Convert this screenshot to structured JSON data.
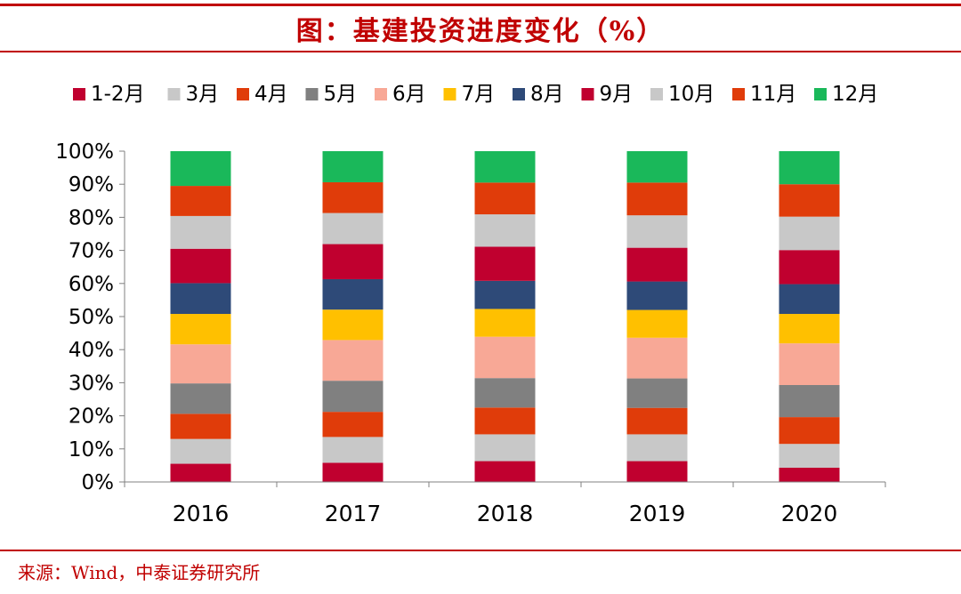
{
  "header": {
    "title": "图：基建投资进度变化（%）"
  },
  "footer": {
    "source": "来源：Wind，中泰证券研究所"
  },
  "colors": {
    "accent": "#c00000",
    "series": [
      "#c0002f",
      "#c8c8c8",
      "#e03c0a",
      "#808080",
      "#f8a896",
      "#ffc000",
      "#2e4a78",
      "#c0002f",
      "#c8c8c8",
      "#e03c0a",
      "#1ab85a"
    ]
  },
  "chart_data": {
    "type": "bar",
    "stacked": true,
    "normalized": true,
    "title": "图：基建投资进度变化（%）",
    "xlabel": "",
    "ylabel": "",
    "ylim": [
      0,
      100
    ],
    "yticks": [
      "0%",
      "10%",
      "20%",
      "30%",
      "40%",
      "50%",
      "60%",
      "70%",
      "80%",
      "90%",
      "100%"
    ],
    "legend_position": "top",
    "categories": [
      "2016",
      "2017",
      "2018",
      "2019",
      "2020"
    ],
    "series": [
      {
        "name": "1-2月",
        "values": [
          5.5,
          5.8,
          6.3,
          6.3,
          4.3
        ]
      },
      {
        "name": "3月",
        "values": [
          7.5,
          7.8,
          8.1,
          8.1,
          7.2
        ]
      },
      {
        "name": "4月",
        "values": [
          7.6,
          7.6,
          8.1,
          8.0,
          8.1
        ]
      },
      {
        "name": "5月",
        "values": [
          9.2,
          9.4,
          8.9,
          8.9,
          9.7
        ]
      },
      {
        "name": "6月",
        "values": [
          11.8,
          12.3,
          12.5,
          12.3,
          12.6
        ]
      },
      {
        "name": "7月",
        "values": [
          9.2,
          9.2,
          8.4,
          8.4,
          8.9
        ]
      },
      {
        "name": "8月",
        "values": [
          9.3,
          9.2,
          8.5,
          8.6,
          9.0
        ]
      },
      {
        "name": "9月",
        "values": [
          10.4,
          10.6,
          10.3,
          10.2,
          10.3
        ]
      },
      {
        "name": "10月",
        "values": [
          9.9,
          9.4,
          9.8,
          9.8,
          10.1
        ]
      },
      {
        "name": "11月",
        "values": [
          9.1,
          9.3,
          9.6,
          9.9,
          9.8
        ]
      },
      {
        "name": "12月",
        "values": [
          10.5,
          9.4,
          9.5,
          9.5,
          10.0
        ]
      }
    ]
  }
}
